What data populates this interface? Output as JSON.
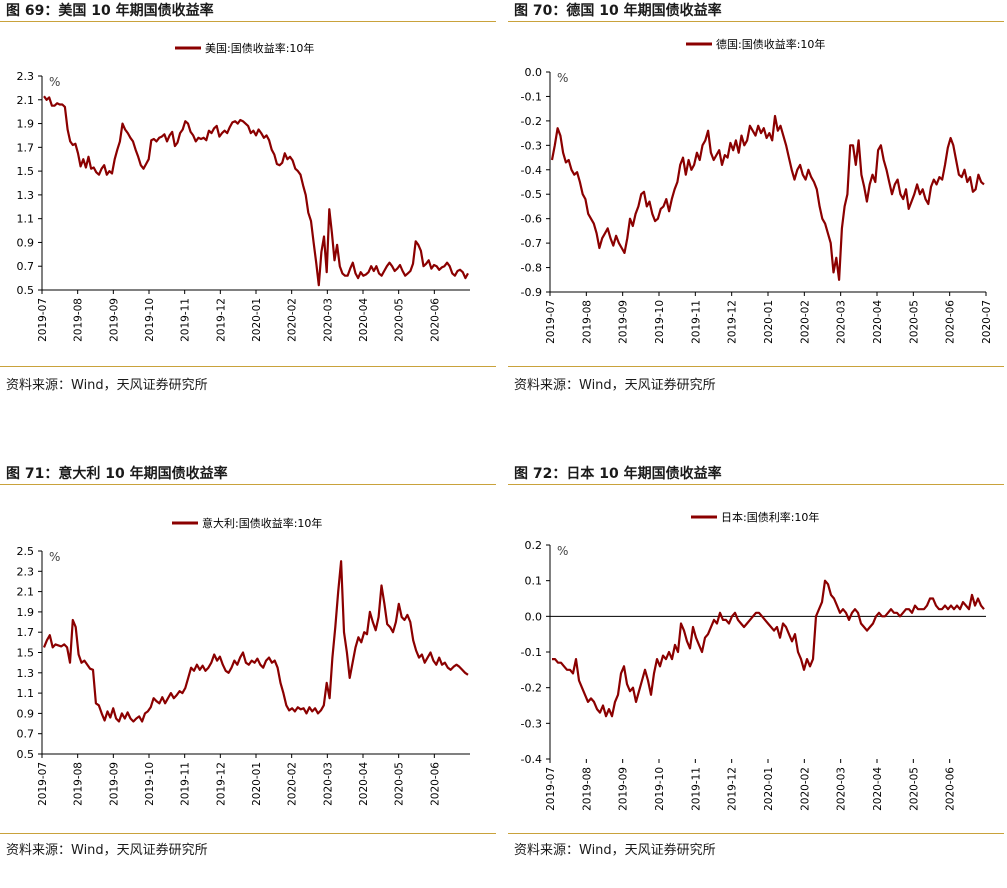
{
  "colors": {
    "series": "#8b0000",
    "rule": "#c9a23b",
    "axis": "#000000"
  },
  "panels": [
    {
      "title": "图 69：美国 10 年期国债收益率",
      "source": "资料来源：Wind，天风证券研究所",
      "chart_data": {
        "type": "line",
        "series": [
          {
            "name": "美国:国债收益率:10年",
            "values": [
              2.13,
              2.1,
              2.12,
              2.05,
              2.05,
              2.07,
              2.06,
              2.06,
              2.04,
              1.85,
              1.75,
              1.72,
              1.73,
              1.65,
              1.54,
              1.6,
              1.53,
              1.62,
              1.52,
              1.53,
              1.49,
              1.47,
              1.52,
              1.55,
              1.47,
              1.5,
              1.48,
              1.6,
              1.68,
              1.75,
              1.9,
              1.85,
              1.82,
              1.78,
              1.75,
              1.68,
              1.62,
              1.55,
              1.52,
              1.56,
              1.6,
              1.76,
              1.77,
              1.75,
              1.78,
              1.79,
              1.81,
              1.75,
              1.8,
              1.83,
              1.71,
              1.74,
              1.82,
              1.85,
              1.92,
              1.9,
              1.83,
              1.8,
              1.75,
              1.78,
              1.77,
              1.78,
              1.76,
              1.84,
              1.82,
              1.86,
              1.88,
              1.79,
              1.82,
              1.84,
              1.82,
              1.87,
              1.91,
              1.92,
              1.9,
              1.93,
              1.92,
              1.9,
              1.88,
              1.82,
              1.84,
              1.8,
              1.85,
              1.82,
              1.78,
              1.8,
              1.76,
              1.68,
              1.64,
              1.56,
              1.55,
              1.57,
              1.65,
              1.6,
              1.62,
              1.59,
              1.52,
              1.5,
              1.47,
              1.38,
              1.3,
              1.15,
              1.08,
              0.9,
              0.73,
              0.54,
              0.82,
              0.95,
              0.65,
              1.18,
              0.98,
              0.75,
              0.88,
              0.7,
              0.64,
              0.62,
              0.62,
              0.68,
              0.73,
              0.64,
              0.6,
              0.65,
              0.62,
              0.63,
              0.65,
              0.7,
              0.66,
              0.7,
              0.64,
              0.62,
              0.66,
              0.7,
              0.73,
              0.7,
              0.66,
              0.68,
              0.71,
              0.66,
              0.62,
              0.64,
              0.66,
              0.72,
              0.91,
              0.88,
              0.83,
              0.7,
              0.72,
              0.75,
              0.68,
              0.71,
              0.7,
              0.67,
              0.69,
              0.7,
              0.73,
              0.7,
              0.64,
              0.62,
              0.66,
              0.67,
              0.65,
              0.6,
              0.64
            ]
          }
        ],
        "ylim": [
          0.5,
          2.3
        ],
        "yticks": [
          "0.5",
          "0.7",
          "0.9",
          "1.1",
          "1.3",
          "1.5",
          "1.7",
          "1.9",
          "2.1",
          "2.3"
        ],
        "xticks": [
          "2019-07",
          "2019-08",
          "2019-09",
          "2019-10",
          "2019-11",
          "2019-12",
          "2020-01",
          "2020-02",
          "2020-03",
          "2020-04",
          "2020-05",
          "2020-06"
        ],
        "unit": "%",
        "legend": "top-center",
        "zero_line": false
      }
    },
    {
      "title": "图 70：德国 10 年期国债收益率",
      "source": "资料来源：Wind，天风证券研究所",
      "chart_data": {
        "type": "line",
        "series": [
          {
            "name": "德国:国债收益率:10年",
            "values": [
              -0.36,
              -0.3,
              -0.23,
              -0.26,
              -0.33,
              -0.37,
              -0.36,
              -0.4,
              -0.42,
              -0.41,
              -0.45,
              -0.5,
              -0.52,
              -0.58,
              -0.6,
              -0.62,
              -0.66,
              -0.72,
              -0.68,
              -0.66,
              -0.64,
              -0.68,
              -0.71,
              -0.67,
              -0.7,
              -0.72,
              -0.74,
              -0.68,
              -0.6,
              -0.63,
              -0.58,
              -0.55,
              -0.5,
              -0.49,
              -0.55,
              -0.53,
              -0.58,
              -0.61,
              -0.6,
              -0.56,
              -0.55,
              -0.52,
              -0.57,
              -0.52,
              -0.48,
              -0.45,
              -0.38,
              -0.35,
              -0.42,
              -0.36,
              -0.4,
              -0.38,
              -0.33,
              -0.36,
              -0.3,
              -0.28,
              -0.24,
              -0.33,
              -0.36,
              -0.34,
              -0.32,
              -0.38,
              -0.34,
              -0.35,
              -0.29,
              -0.32,
              -0.28,
              -0.33,
              -0.26,
              -0.3,
              -0.28,
              -0.22,
              -0.24,
              -0.26,
              -0.22,
              -0.25,
              -0.23,
              -0.27,
              -0.25,
              -0.28,
              -0.18,
              -0.24,
              -0.22,
              -0.26,
              -0.3,
              -0.35,
              -0.4,
              -0.44,
              -0.4,
              -0.38,
              -0.42,
              -0.44,
              -0.4,
              -0.43,
              -0.45,
              -0.48,
              -0.55,
              -0.6,
              -0.62,
              -0.66,
              -0.7,
              -0.82,
              -0.76,
              -0.85,
              -0.64,
              -0.55,
              -0.5,
              -0.3,
              -0.3,
              -0.38,
              -0.28,
              -0.42,
              -0.47,
              -0.53,
              -0.46,
              -0.42,
              -0.45,
              -0.32,
              -0.3,
              -0.36,
              -0.4,
              -0.45,
              -0.5,
              -0.46,
              -0.44,
              -0.5,
              -0.52,
              -0.48,
              -0.56,
              -0.53,
              -0.5,
              -0.46,
              -0.5,
              -0.48,
              -0.52,
              -0.54,
              -0.47,
              -0.44,
              -0.46,
              -0.43,
              -0.44,
              -0.38,
              -0.31,
              -0.27,
              -0.3,
              -0.36,
              -0.42,
              -0.43,
              -0.4,
              -0.45,
              -0.43,
              -0.49,
              -0.48,
              -0.42,
              -0.45,
              -0.46
            ]
          }
        ],
        "ylim": [
          -0.9,
          0.0
        ],
        "yticks": [
          "-0.9",
          "-0.8",
          "-0.7",
          "-0.6",
          "-0.5",
          "-0.4",
          "-0.3",
          "-0.2",
          "-0.1",
          "0.0"
        ],
        "xticks": [
          "2019-07",
          "2019-08",
          "2019-09",
          "2019-10",
          "2019-11",
          "2019-12",
          "2020-01",
          "2020-02",
          "2020-03",
          "2020-04",
          "2020-05",
          "2020-06",
          "2020-07"
        ],
        "unit": "%",
        "legend": "top-center",
        "zero_line": false
      }
    },
    {
      "title": "图 71：意大利 10 年期国债收益率",
      "source": "资料来源：Wind，天风证券研究所",
      "chart_data": {
        "type": "line",
        "series": [
          {
            "name": "意大利:国债收益率:10年",
            "values": [
              1.55,
              1.62,
              1.67,
              1.55,
              1.58,
              1.57,
              1.56,
              1.58,
              1.55,
              1.4,
              1.82,
              1.75,
              1.48,
              1.4,
              1.42,
              1.38,
              1.34,
              1.33,
              1.0,
              0.98,
              0.9,
              0.83,
              0.92,
              0.86,
              0.95,
              0.85,
              0.82,
              0.9,
              0.85,
              0.91,
              0.85,
              0.82,
              0.85,
              0.87,
              0.82,
              0.9,
              0.92,
              0.96,
              1.05,
              1.02,
              1.0,
              1.06,
              1.0,
              1.05,
              1.1,
              1.05,
              1.08,
              1.12,
              1.1,
              1.15,
              1.25,
              1.35,
              1.32,
              1.38,
              1.33,
              1.37,
              1.32,
              1.35,
              1.4,
              1.48,
              1.42,
              1.46,
              1.38,
              1.32,
              1.3,
              1.35,
              1.42,
              1.38,
              1.45,
              1.5,
              1.4,
              1.38,
              1.42,
              1.4,
              1.44,
              1.38,
              1.35,
              1.42,
              1.45,
              1.4,
              1.42,
              1.35,
              1.2,
              1.1,
              0.98,
              0.93,
              0.95,
              0.92,
              0.96,
              0.94,
              0.95,
              0.9,
              0.96,
              0.92,
              0.95,
              0.9,
              0.93,
              0.98,
              1.2,
              1.05,
              1.45,
              1.75,
              2.1,
              2.4,
              1.7,
              1.5,
              1.25,
              1.4,
              1.55,
              1.65,
              1.6,
              1.7,
              1.68,
              1.9,
              1.8,
              1.72,
              1.85,
              2.16,
              1.98,
              1.78,
              1.75,
              1.7,
              1.8,
              1.98,
              1.85,
              1.82,
              1.87,
              1.8,
              1.62,
              1.52,
              1.45,
              1.48,
              1.4,
              1.45,
              1.5,
              1.42,
              1.38,
              1.45,
              1.38,
              1.4,
              1.35,
              1.33,
              1.36,
              1.38,
              1.36,
              1.33,
              1.3,
              1.28
            ]
          }
        ],
        "ylim": [
          0.5,
          2.5
        ],
        "yticks": [
          "0.5",
          "0.7",
          "0.9",
          "1.1",
          "1.3",
          "1.5",
          "1.7",
          "1.9",
          "2.1",
          "2.3",
          "2.5"
        ],
        "xticks": [
          "2019-07",
          "2019-08",
          "2019-09",
          "2019-10",
          "2019-11",
          "2019-12",
          "2020-01",
          "2020-02",
          "2020-03",
          "2020-04",
          "2020-05",
          "2020-06"
        ],
        "unit": "%",
        "legend": "top-center",
        "zero_line": false
      }
    },
    {
      "title": "图 72：日本 10 年期国债收益率",
      "source": "资料来源：Wind，天风证券研究所",
      "chart_data": {
        "type": "line",
        "series": [
          {
            "name": "日本:国债利率:10年",
            "values": [
              -0.12,
              -0.12,
              -0.13,
              -0.13,
              -0.14,
              -0.15,
              -0.15,
              -0.16,
              -0.12,
              -0.18,
              -0.2,
              -0.22,
              -0.24,
              -0.23,
              -0.24,
              -0.26,
              -0.27,
              -0.25,
              -0.28,
              -0.26,
              -0.28,
              -0.24,
              -0.22,
              -0.16,
              -0.14,
              -0.19,
              -0.21,
              -0.2,
              -0.24,
              -0.21,
              -0.18,
              -0.15,
              -0.18,
              -0.22,
              -0.16,
              -0.12,
              -0.14,
              -0.11,
              -0.12,
              -0.1,
              -0.12,
              -0.08,
              -0.1,
              -0.02,
              -0.04,
              -0.07,
              -0.09,
              -0.03,
              -0.06,
              -0.08,
              -0.1,
              -0.06,
              -0.05,
              -0.03,
              -0.01,
              -0.02,
              0.01,
              -0.01,
              -0.01,
              -0.02,
              0.0,
              0.01,
              -0.01,
              -0.02,
              -0.03,
              -0.02,
              -0.01,
              0.0,
              0.01,
              0.01,
              0.0,
              -0.01,
              -0.02,
              -0.03,
              -0.04,
              -0.03,
              -0.06,
              -0.02,
              -0.03,
              -0.05,
              -0.07,
              -0.05,
              -0.1,
              -0.12,
              -0.15,
              -0.12,
              -0.14,
              -0.12,
              0.0,
              0.02,
              0.04,
              0.1,
              0.09,
              0.06,
              0.05,
              0.03,
              0.01,
              0.02,
              0.01,
              -0.01,
              0.01,
              0.02,
              0.01,
              -0.02,
              -0.03,
              -0.04,
              -0.03,
              -0.02,
              0.0,
              0.01,
              0.0,
              0.0,
              0.01,
              0.02,
              0.01,
              0.01,
              0.0,
              0.01,
              0.02,
              0.02,
              0.01,
              0.03,
              0.02,
              0.02,
              0.02,
              0.03,
              0.05,
              0.05,
              0.03,
              0.02,
              0.02,
              0.03,
              0.02,
              0.03,
              0.02,
              0.03,
              0.02,
              0.04,
              0.03,
              0.02,
              0.06,
              0.03,
              0.05,
              0.03,
              0.02
            ]
          }
        ],
        "ylim": [
          -0.4,
          0.2
        ],
        "yticks": [
          "-0.4",
          "-0.3",
          "-0.2",
          "-0.1",
          "0.0",
          "0.1",
          "0.2"
        ],
        "xticks": [
          "2019-07",
          "2019-08",
          "2019-09",
          "2019-10",
          "2019-11",
          "2019-12",
          "2020-01",
          "2020-02",
          "2020-03",
          "2020-04",
          "2020-05",
          "2020-06"
        ],
        "unit": "%",
        "legend": "top-center",
        "zero_line": true
      }
    }
  ]
}
